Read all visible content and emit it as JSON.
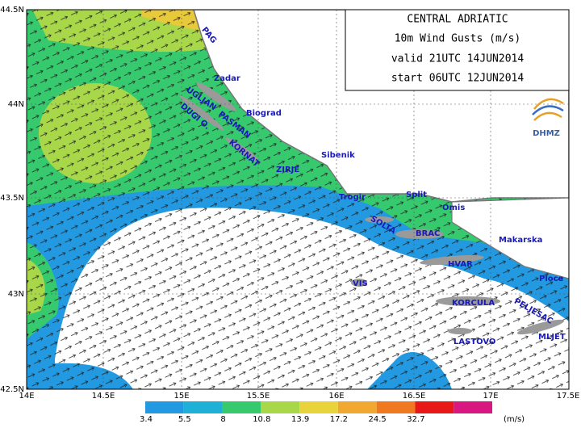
{
  "title_box": {
    "lines": [
      "CENTRAL ADRIATIC",
      "10m Wind Gusts (m/s)",
      "valid 21UTC 14JUN2014",
      "start 06UTC 12JUN2014"
    ]
  },
  "logo": "DHMZ",
  "x_axis": {
    "labels": [
      "14E",
      "14.5E",
      "15E",
      "15.5E",
      "16E",
      "16.5E",
      "17E",
      "17.5E"
    ]
  },
  "y_axis": {
    "labels": [
      "44.5N",
      "44N",
      "43.5N",
      "43N",
      "42.5N"
    ]
  },
  "places": [
    "PAG",
    "Zadar",
    "UGLJAN",
    "PASMAN",
    "Biograd",
    "DUGI O.",
    "KORNAT",
    "Sibenik",
    "ZIRJE",
    "Trogir",
    "Split",
    "Omis",
    "SOLTA",
    "BRAC",
    "Makarska",
    "HVAR",
    "Ploce",
    "VIS",
    "PELJESAC",
    "KORCULA",
    "LASTOVO",
    "MLJET"
  ],
  "colorbar": {
    "labels": [
      "3.4",
      "5.5",
      "8",
      "10.8",
      "13.9",
      "17.2",
      "24.5",
      "32.7"
    ],
    "unit": "(m/s)"
  }
}
